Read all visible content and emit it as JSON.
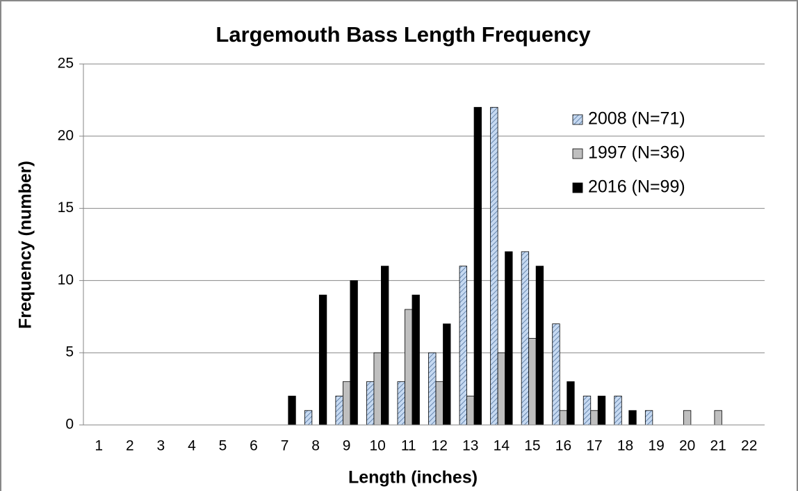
{
  "chart_data": {
    "type": "bar",
    "title": "Largemouth Bass Length Frequency",
    "x_label": "Length (inches)",
    "y_label": "Frequency (number)",
    "categories": [
      "1",
      "2",
      "3",
      "4",
      "5",
      "6",
      "7",
      "8",
      "9",
      "10",
      "11",
      "12",
      "13",
      "14",
      "15",
      "16",
      "17",
      "18",
      "19",
      "20",
      "21",
      "22"
    ],
    "series": [
      {
        "name": "2008 (N=71)",
        "color": "#c6d9f1",
        "hatch": true,
        "values": [
          0,
          0,
          0,
          0,
          0,
          0,
          0,
          1,
          2,
          3,
          3,
          5,
          11,
          22,
          12,
          7,
          2,
          2,
          1,
          0,
          0,
          0
        ]
      },
      {
        "name": "1997 (N=36)",
        "color": "#bfbfbf",
        "values": [
          0,
          0,
          0,
          0,
          0,
          0,
          0,
          0,
          3,
          5,
          8,
          3,
          2,
          5,
          6,
          1,
          1,
          0,
          0,
          1,
          1,
          0
        ]
      },
      {
        "name": "2016 (N=99)",
        "color": "#000000",
        "values": [
          0,
          0,
          0,
          0,
          0,
          0,
          2,
          9,
          10,
          11,
          9,
          7,
          22,
          12,
          11,
          3,
          2,
          1,
          0,
          0,
          0,
          0
        ]
      }
    ],
    "ylim": [
      0,
      25
    ],
    "yticks": [
      0,
      5,
      10,
      15,
      20,
      25
    ],
    "grid": true,
    "legend": "upper right"
  }
}
